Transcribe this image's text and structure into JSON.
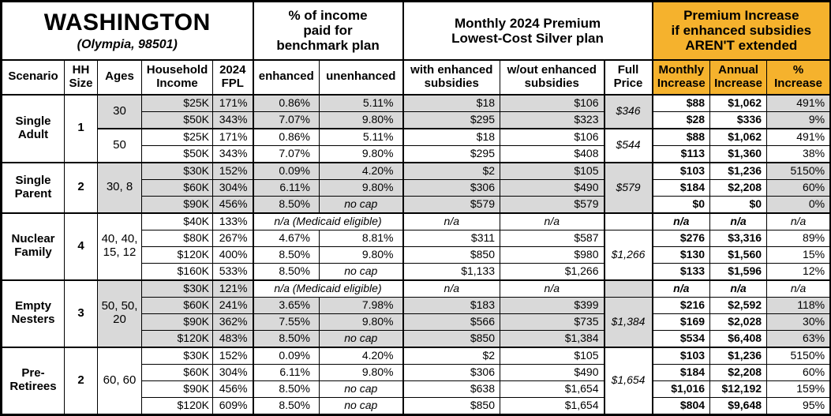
{
  "colors": {
    "accent_orange": "#F5B22D",
    "row_shade_gray": "#D9D9D9",
    "border_black": "#000000"
  },
  "header": {
    "title": "WASHINGTON",
    "subtitle": "(Olympia, 98501)",
    "group_benchmark": "% of income\npaid for\nbenchmark plan",
    "group_premium": "Monthly 2024 Premium\nLowest-Cost Silver plan",
    "group_increase": "Premium Increase\nif enhanced subsidies\nAREN'T extended"
  },
  "columns": {
    "scenario": "Scenario",
    "hh_size": "HH\nSize",
    "ages": "Ages",
    "income": "Household\nIncome",
    "fpl": "2024\nFPL",
    "enhanced": "enhanced",
    "unenhanced": "unenhanced",
    "with_subsidies": "with enhanced\nsubsidies",
    "without_subsidies": "w/out enhanced\nsubsidies",
    "full_price": "Full\nPrice",
    "monthly_increase": "Monthly\nIncrease",
    "annual_increase": "Annual\nIncrease",
    "pct_increase": "%\nIncrease"
  },
  "labels": {
    "na": "n/a",
    "medicaid_note": "n/a (Medicaid eligible)",
    "no_cap": "no cap"
  },
  "scenarios": [
    {
      "name": "Single\nAdult",
      "hh_size": "1",
      "subgroups": [
        {
          "ages": "30",
          "shaded": true,
          "full_price": "$346",
          "medicaid_first": false,
          "rows": [
            {
              "income": "$25K",
              "fpl": "171%",
              "enhanced": "0.86%",
              "unenhanced": "5.11%",
              "with_subsidies": "$18",
              "without_subsidies": "$106",
              "monthly": "$88",
              "annual": "$1,062",
              "pct": "491%"
            },
            {
              "income": "$50K",
              "fpl": "343%",
              "enhanced": "7.07%",
              "unenhanced": "9.80%",
              "with_subsidies": "$295",
              "without_subsidies": "$323",
              "monthly": "$28",
              "annual": "$336",
              "pct": "9%"
            }
          ]
        },
        {
          "ages": "50",
          "shaded": false,
          "full_price": "$544",
          "medicaid_first": false,
          "rows": [
            {
              "income": "$25K",
              "fpl": "171%",
              "enhanced": "0.86%",
              "unenhanced": "5.11%",
              "with_subsidies": "$18",
              "without_subsidies": "$106",
              "monthly": "$88",
              "annual": "$1,062",
              "pct": "491%"
            },
            {
              "income": "$50K",
              "fpl": "343%",
              "enhanced": "7.07%",
              "unenhanced": "9.80%",
              "with_subsidies": "$295",
              "without_subsidies": "$408",
              "monthly": "$113",
              "annual": "$1,360",
              "pct": "38%"
            }
          ]
        }
      ]
    },
    {
      "name": "Single\nParent",
      "hh_size": "2",
      "subgroups": [
        {
          "ages": "30, 8",
          "shaded": true,
          "full_price": "$579",
          "medicaid_first": false,
          "rows": [
            {
              "income": "$30K",
              "fpl": "152%",
              "enhanced": "0.09%",
              "unenhanced": "4.20%",
              "with_subsidies": "$2",
              "without_subsidies": "$105",
              "monthly": "$103",
              "annual": "$1,236",
              "pct": "5150%"
            },
            {
              "income": "$60K",
              "fpl": "304%",
              "enhanced": "6.11%",
              "unenhanced": "9.80%",
              "with_subsidies": "$306",
              "without_subsidies": "$490",
              "monthly": "$184",
              "annual": "$2,208",
              "pct": "60%"
            },
            {
              "income": "$90K",
              "fpl": "456%",
              "enhanced": "8.50%",
              "unenhanced": "no cap",
              "with_subsidies": "$579",
              "without_subsidies": "$579",
              "monthly": "$0",
              "annual": "$0",
              "pct": "0%"
            }
          ]
        }
      ]
    },
    {
      "name": "Nuclear\nFamily",
      "hh_size": "4",
      "subgroups": [
        {
          "ages": "40, 40,\n15, 12",
          "shaded": false,
          "full_price": "$1,266",
          "medicaid_first": true,
          "rows": [
            {
              "income": "$40K",
              "fpl": "133%",
              "medicaid": true
            },
            {
              "income": "$80K",
              "fpl": "267%",
              "enhanced": "4.67%",
              "unenhanced": "8.81%",
              "with_subsidies": "$311",
              "without_subsidies": "$587",
              "monthly": "$276",
              "annual": "$3,316",
              "pct": "89%"
            },
            {
              "income": "$120K",
              "fpl": "400%",
              "enhanced": "8.50%",
              "unenhanced": "9.80%",
              "with_subsidies": "$850",
              "without_subsidies": "$980",
              "monthly": "$130",
              "annual": "$1,560",
              "pct": "15%"
            },
            {
              "income": "$160K",
              "fpl": "533%",
              "enhanced": "8.50%",
              "unenhanced": "no cap",
              "with_subsidies": "$1,133",
              "without_subsidies": "$1,266",
              "monthly": "$133",
              "annual": "$1,596",
              "pct": "12%"
            }
          ]
        }
      ]
    },
    {
      "name": "Empty\nNesters",
      "hh_size": "3",
      "subgroups": [
        {
          "ages": "50, 50,\n20",
          "shaded": true,
          "full_price": "$1,384",
          "medicaid_first": true,
          "rows": [
            {
              "income": "$30K",
              "fpl": "121%",
              "medicaid": true
            },
            {
              "income": "$60K",
              "fpl": "241%",
              "enhanced": "3.65%",
              "unenhanced": "7.98%",
              "with_subsidies": "$183",
              "without_subsidies": "$399",
              "monthly": "$216",
              "annual": "$2,592",
              "pct": "118%"
            },
            {
              "income": "$90K",
              "fpl": "362%",
              "enhanced": "7.55%",
              "unenhanced": "9.80%",
              "with_subsidies": "$566",
              "without_subsidies": "$735",
              "monthly": "$169",
              "annual": "$2,028",
              "pct": "30%"
            },
            {
              "income": "$120K",
              "fpl": "483%",
              "enhanced": "8.50%",
              "unenhanced": "no cap",
              "with_subsidies": "$850",
              "without_subsidies": "$1,384",
              "monthly": "$534",
              "annual": "$6,408",
              "pct": "63%"
            }
          ]
        }
      ]
    },
    {
      "name": "Pre-\nRetirees",
      "hh_size": "2",
      "subgroups": [
        {
          "ages": "60, 60",
          "shaded": false,
          "full_price": "$1,654",
          "medicaid_first": false,
          "rows": [
            {
              "income": "$30K",
              "fpl": "152%",
              "enhanced": "0.09%",
              "unenhanced": "4.20%",
              "with_subsidies": "$2",
              "without_subsidies": "$105",
              "monthly": "$103",
              "annual": "$1,236",
              "pct": "5150%"
            },
            {
              "income": "$60K",
              "fpl": "304%",
              "enhanced": "6.11%",
              "unenhanced": "9.80%",
              "with_subsidies": "$306",
              "without_subsidies": "$490",
              "monthly": "$184",
              "annual": "$2,208",
              "pct": "60%"
            },
            {
              "income": "$90K",
              "fpl": "456%",
              "enhanced": "8.50%",
              "unenhanced": "no cap",
              "with_subsidies": "$638",
              "without_subsidies": "$1,654",
              "monthly": "$1,016",
              "annual": "$12,192",
              "pct": "159%"
            },
            {
              "income": "$120K",
              "fpl": "609%",
              "enhanced": "8.50%",
              "unenhanced": "no cap",
              "with_subsidies": "$850",
              "without_subsidies": "$1,654",
              "monthly": "$804",
              "annual": "$9,648",
              "pct": "95%"
            }
          ]
        }
      ]
    }
  ]
}
